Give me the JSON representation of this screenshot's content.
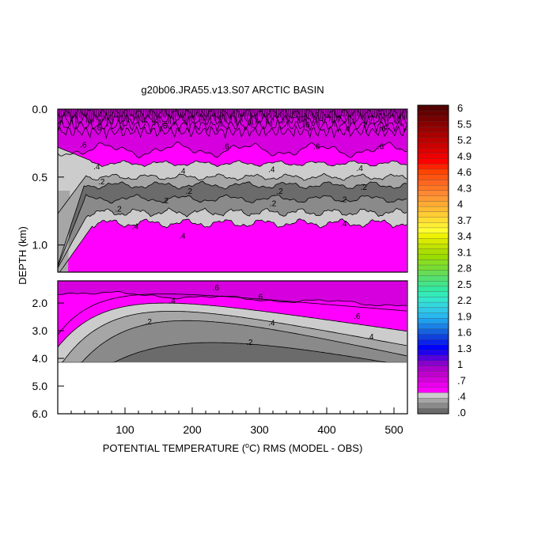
{
  "chart_data": {
    "type": "heatmap",
    "title": "g20b06.JRA55.v13.S07 ARCTIC BASIN",
    "xlabel": "POTENTIAL TEMPERATURE (°C) RMS (MODEL - OBS)",
    "xlabel_parts": [
      "POTENTIAL TEMPERATURE (",
      "o",
      "C) RMS (MODEL - OBS)"
    ],
    "ylabel": "DEPTH (km)",
    "x_range": [
      0,
      520
    ],
    "x_ticks": [
      100,
      200,
      300,
      400,
      500
    ],
    "upper_panel": {
      "depth_range": [
        0.0,
        1.2
      ],
      "y_ticks": [
        0.0,
        0.5,
        1.0
      ],
      "y_tick_labels": [
        "0.0",
        "0.5",
        "1.0"
      ]
    },
    "lower_panel": {
      "depth_range": [
        1.2,
        6.0
      ],
      "y_ticks": [
        2.0,
        3.0,
        4.0,
        5.0,
        6.0
      ],
      "y_tick_labels": [
        "2.0",
        "3.0",
        "4.0",
        "5.0",
        "6.0"
      ],
      "data_bottom_depth": 4.15
    },
    "contour_labels": [
      {
        "text": ".6",
        "x": 60,
        "d": 0.13
      },
      {
        "text": ".6",
        "x": 158,
        "d": 0.12
      },
      {
        "text": ".6",
        "x": 370,
        "d": 0.11
      },
      {
        "text": ".6",
        "x": 483,
        "d": 0.14
      },
      {
        "text": ".6",
        "x": 38,
        "d": 0.26
      },
      {
        "text": ".6",
        "x": 250,
        "d": 0.27
      },
      {
        "text": ".6",
        "x": 385,
        "d": 0.27
      },
      {
        "text": ".6",
        "x": 480,
        "d": 0.27
      },
      {
        "text": ".4",
        "x": 58,
        "d": 0.42
      },
      {
        "text": ".4",
        "x": 185,
        "d": 0.45
      },
      {
        "text": ".4",
        "x": 318,
        "d": 0.44
      },
      {
        "text": ".4",
        "x": 449,
        "d": 0.43
      },
      {
        "text": ".2",
        "x": 65,
        "d": 0.53
      },
      {
        "text": ".2",
        "x": 195,
        "d": 0.6
      },
      {
        "text": ".2",
        "x": 330,
        "d": 0.6
      },
      {
        "text": ".2",
        "x": 455,
        "d": 0.57
      },
      {
        "text": ".2",
        "x": 90,
        "d": 0.73
      },
      {
        "text": ".2",
        "x": 160,
        "d": 0.67
      },
      {
        "text": ".2",
        "x": 320,
        "d": 0.69
      },
      {
        "text": ".2",
        "x": 425,
        "d": 0.66
      },
      {
        "text": ".4",
        "x": 115,
        "d": 0.86
      },
      {
        "text": ".4",
        "x": 185,
        "d": 0.93
      },
      {
        "text": ".4",
        "x": 425,
        "d": 0.84
      },
      {
        "text": ".6",
        "x": 235,
        "d": 1.43
      },
      {
        "text": ".6",
        "x": 300,
        "d": 1.75
      },
      {
        "text": ".4",
        "x": 170,
        "d": 1.9
      },
      {
        "text": ".4",
        "x": 318,
        "d": 2.7
      },
      {
        "text": ".6",
        "x": 445,
        "d": 2.45
      },
      {
        "text": ".4",
        "x": 465,
        "d": 3.2
      },
      {
        "text": ".2",
        "x": 135,
        "d": 2.65
      },
      {
        "text": ".2",
        "x": 285,
        "d": 3.4
      }
    ],
    "colorbar": {
      "min": 0,
      "max": 6,
      "tick_labels": [
        "6",
        "5.5",
        "5.2",
        "4.9",
        "4.6",
        "4.3",
        "4",
        "3.7",
        "3.4",
        "3.1",
        "2.8",
        "2.5",
        "2.2",
        "1.9",
        "1.6",
        "1.3",
        "1",
        ".7",
        ".4",
        ".0"
      ],
      "colors": [
        "#6b6b6b",
        "#8a8a8a",
        "#a6a6a6",
        "#cccccc",
        "#ff00ff",
        "#ea00ee",
        "#d500dd",
        "#c000cc",
        "#aa00cc",
        "#8800cc",
        "#5500dd",
        "#2200ee",
        "#0000ff",
        "#0a22ee",
        "#0f42dd",
        "#1462dd",
        "#1a82e6",
        "#1fa0ee",
        "#28b8ee",
        "#30c8e6",
        "#33d8dd",
        "#33e6cc",
        "#33ebb8",
        "#33e8a0",
        "#44e488",
        "#55e070",
        "#66dd55",
        "#77dd33",
        "#88dd22",
        "#99dd00",
        "#aadd00",
        "#c2e200",
        "#d8ea00",
        "#eef200",
        "#ffff33",
        "#ffee33",
        "#ffdd33",
        "#ffcc33",
        "#ffbb33",
        "#ffaa33",
        "#ff9933",
        "#ff8833",
        "#ff7722",
        "#ff6622",
        "#ff5511",
        "#ff4400",
        "#ff2200",
        "#ff0000",
        "#ee0000",
        "#dd0000",
        "#cc0000",
        "#bb0000",
        "#aa0000",
        "#990000",
        "#880000",
        "#770000",
        "#660000",
        "#550000"
      ]
    },
    "level_colors": {
      "c1": "#6b6b6b",
      "c2": "#8a8a8a",
      "c3": "#a6a6a6",
      "c4": "#cccccc",
      "c5": "#ff00ff",
      "c6": "#d500dd",
      "c7": "#b000c0"
    }
  }
}
